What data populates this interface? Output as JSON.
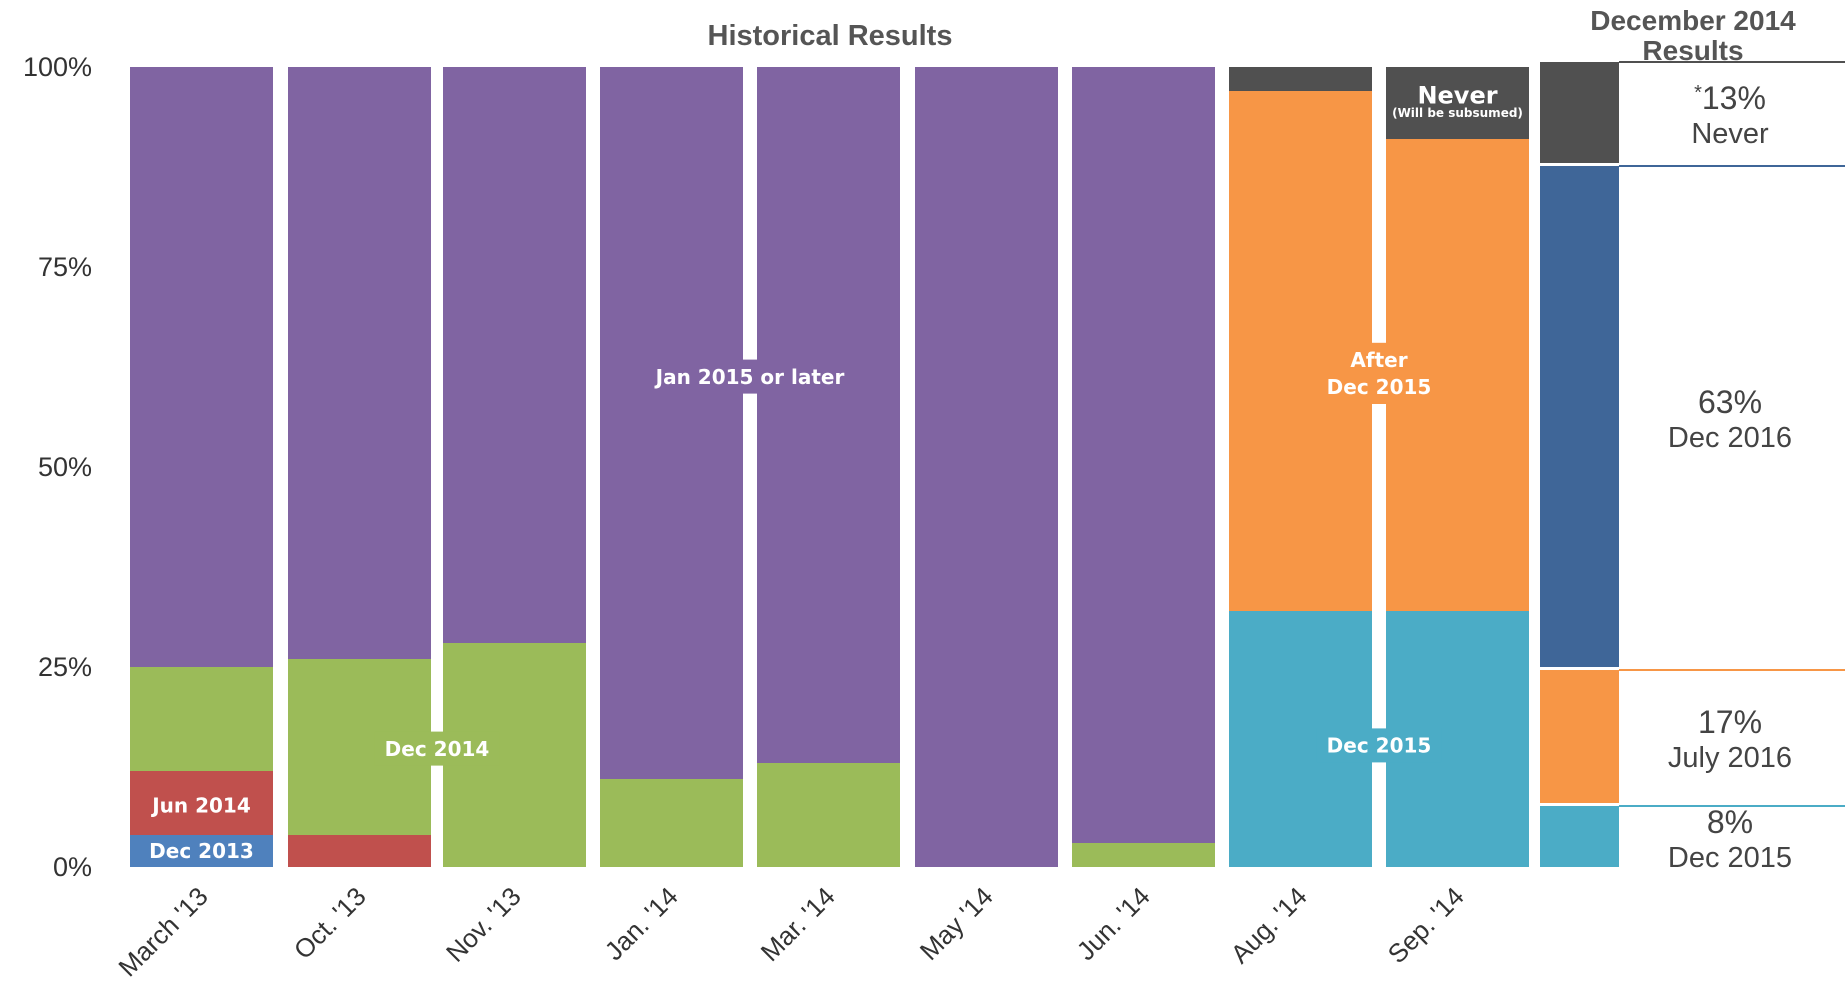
{
  "chart_data": [
    {
      "type": "bar",
      "stacked": true,
      "title": "Historical Results",
      "categories": [
        "March '13",
        "Oct. '13",
        "Nov. '13",
        "Jan. '14",
        "Mar. '14",
        "May '14",
        "Jun. '14",
        "Aug. '14",
        "Sep. '14"
      ],
      "ylim": [
        0,
        100
      ],
      "yticks": [
        "0%",
        "25%",
        "50%",
        "75%",
        "100%"
      ],
      "grid": false,
      "series": [
        {
          "key": "dec2013",
          "color": "#4F81BD",
          "values": [
            4,
            0,
            0,
            0,
            0,
            0,
            0,
            0,
            0
          ]
        },
        {
          "key": "jun2014",
          "color": "#C0504D",
          "values": [
            8,
            4,
            0,
            0,
            0,
            0,
            0,
            0,
            0
          ]
        },
        {
          "key": "dec2014",
          "color": "#9BBB59",
          "values": [
            13,
            22,
            28,
            11,
            13,
            0,
            3,
            0,
            0
          ]
        },
        {
          "key": "jan2015",
          "color": "#8064A2",
          "values": [
            75,
            74,
            72,
            89,
            87,
            100,
            97,
            0,
            0
          ]
        },
        {
          "key": "dec2015",
          "color": "#4BACC6",
          "values": [
            0,
            0,
            0,
            0,
            0,
            0,
            0,
            32,
            32
          ]
        },
        {
          "key": "afterdec2015",
          "color": "#F79646",
          "values": [
            0,
            0,
            0,
            0,
            0,
            0,
            0,
            65,
            59
          ]
        },
        {
          "key": "never",
          "color": "#505050",
          "values": [
            0,
            0,
            0,
            0,
            0,
            0,
            0,
            3,
            9
          ]
        }
      ],
      "labels": [
        {
          "text": "Dec 2013",
          "category": 0,
          "y": 2
        },
        {
          "text": "Jun 2014",
          "category": 0,
          "y": 7.7
        },
        {
          "text": "Dec 2014",
          "category": 1.5,
          "y": 14.8
        },
        {
          "text": "Jan 2015 or later",
          "category": 3.5,
          "y": 61.3
        },
        {
          "text": "After",
          "category": 7.5,
          "y": 63.4
        },
        {
          "text": "Dec 2015",
          "category": 7.5,
          "y": 60
        },
        {
          "text": "Dec 2015",
          "category": 7.5,
          "y": 15.2
        },
        {
          "text": "Never",
          "category": 8,
          "y": 96.5
        },
        {
          "text": "(Will be subsumed)",
          "category": 8,
          "y": 94.3
        }
      ]
    },
    {
      "type": "bar",
      "stacked": true,
      "title_lines": [
        "December 2014",
        "Results"
      ],
      "ylim": [
        0,
        100
      ],
      "segments": [
        {
          "key": "dec2015",
          "color": "#4BACC6",
          "value": 8,
          "pct": "8%",
          "label": "Dec 2015"
        },
        {
          "key": "july2016",
          "color": "#F79646",
          "value": 17,
          "pct": "17%",
          "label": "July 2016"
        },
        {
          "key": "dec2016",
          "color": "#3F6698",
          "value": 63,
          "pct": "63%",
          "label": "Dec 2016"
        },
        {
          "key": "never",
          "color": "#505050",
          "value": 13,
          "pct": "13%",
          "label": "Never",
          "marker": "*"
        }
      ]
    }
  ]
}
